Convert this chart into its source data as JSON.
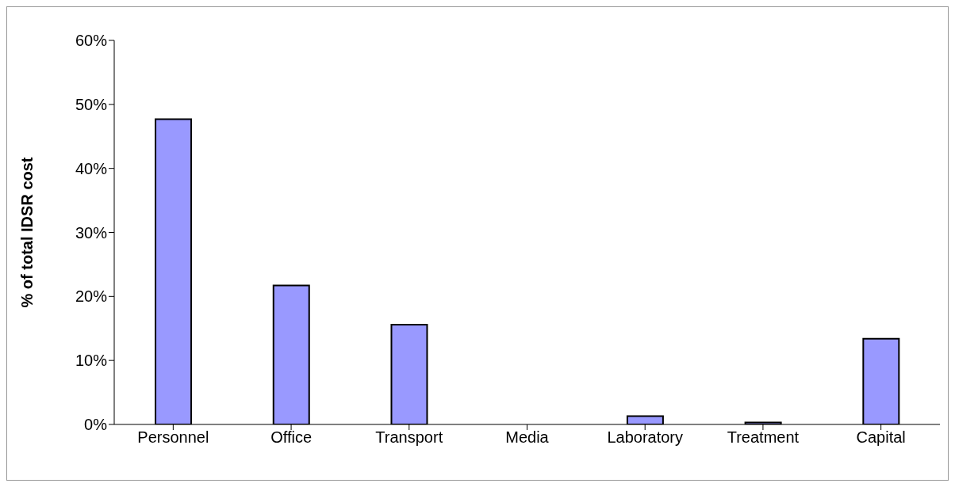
{
  "chart_data": {
    "type": "bar",
    "ylabel": "% of total IDSR cost",
    "categories": [
      "Personnel",
      "Office",
      "Transport",
      "Media",
      "Laboratory",
      "Treatment",
      "Capital"
    ],
    "values": [
      47.7,
      21.7,
      15.6,
      0,
      1.3,
      0.3,
      13.4
    ],
    "color": "#9999ff",
    "ylim": [
      0,
      60
    ],
    "yticks": [
      {
        "value": 0,
        "label": "0%"
      },
      {
        "value": 10,
        "label": "10%"
      },
      {
        "value": 20,
        "label": "20%"
      },
      {
        "value": 30,
        "label": "30%"
      },
      {
        "value": 40,
        "label": "40%"
      },
      {
        "value": 50,
        "label": "50%"
      },
      {
        "value": 60,
        "label": "60%"
      }
    ],
    "grid": false,
    "legend": false
  }
}
